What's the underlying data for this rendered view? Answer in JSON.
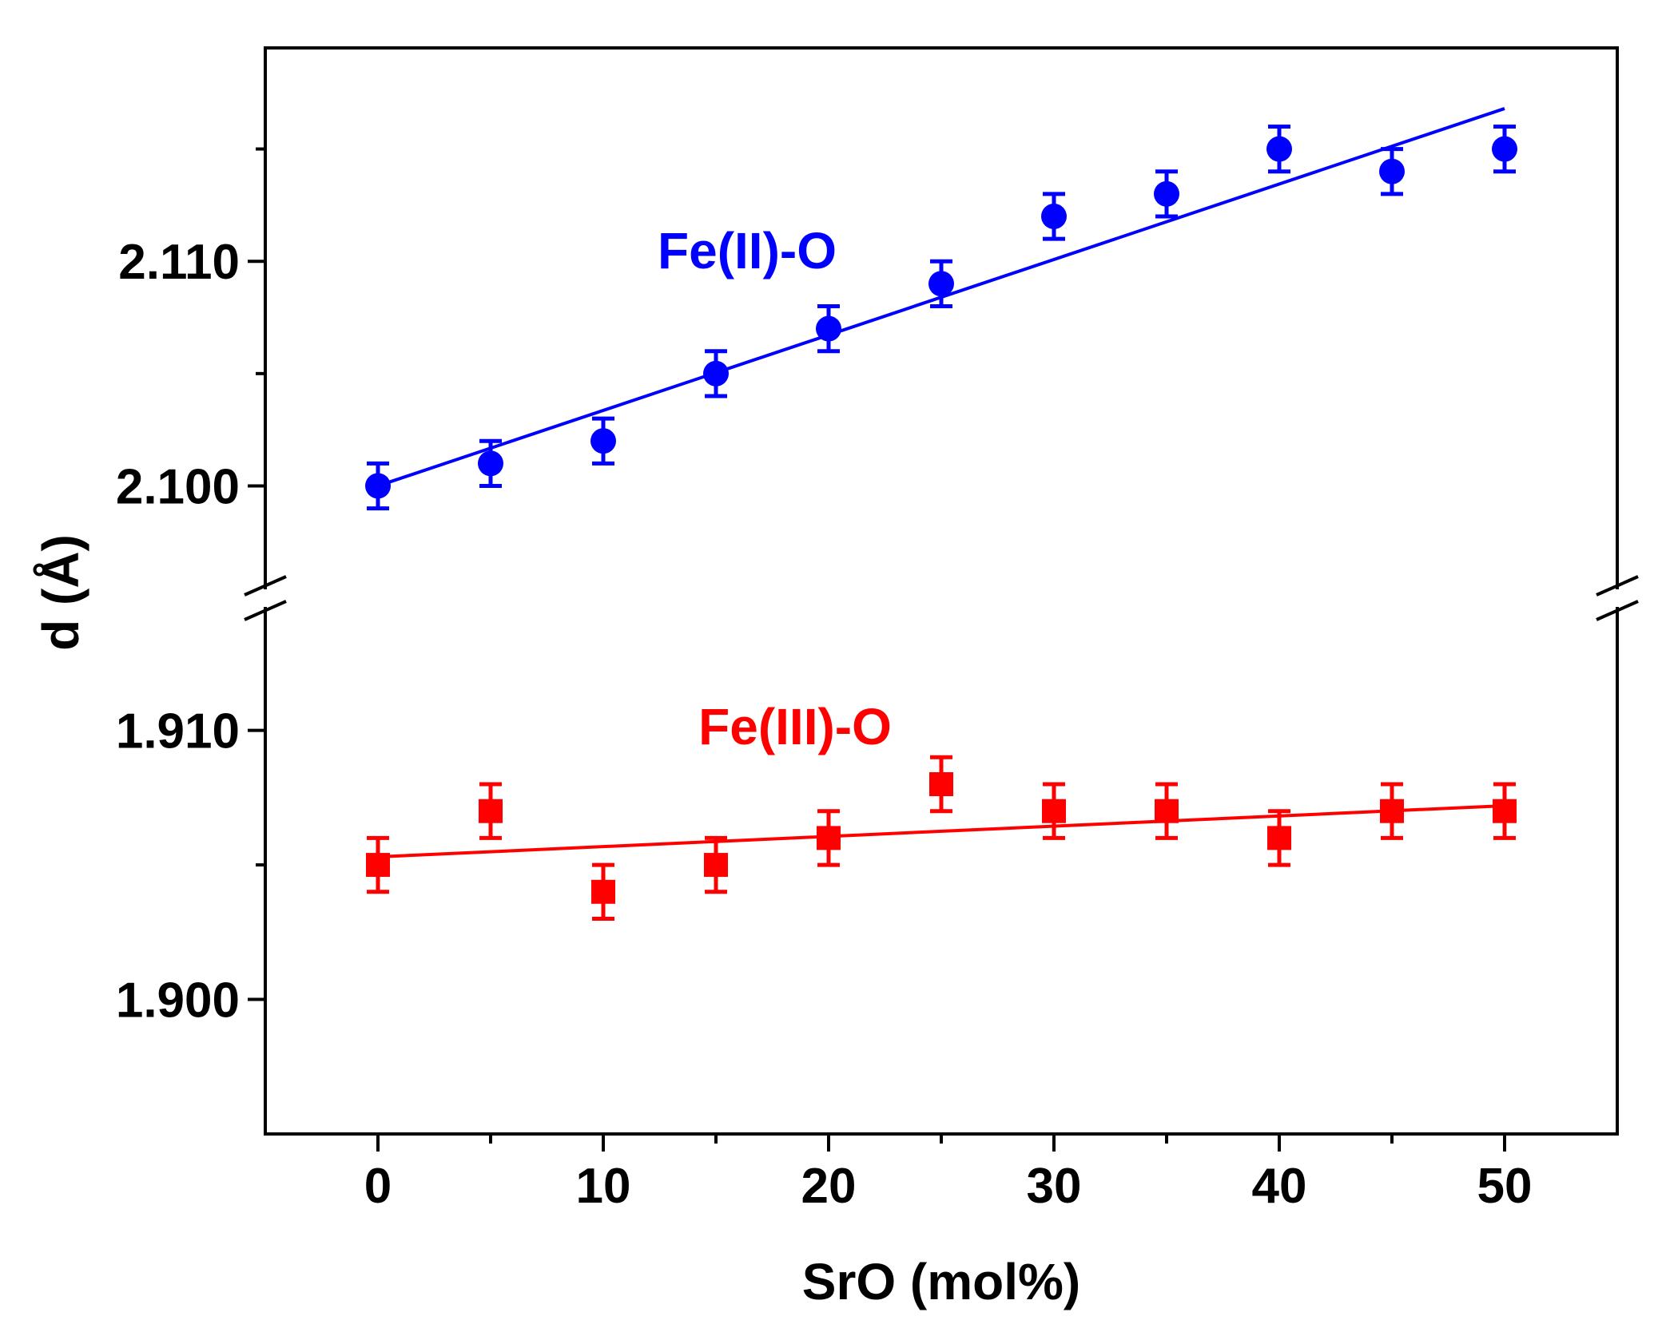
{
  "chart_data": {
    "type": "scatter",
    "title": "",
    "xlabel": "SrO (mol%)",
    "ylabel": "d (Å)",
    "xlim": [
      -5,
      55
    ],
    "x_ticks": [
      0,
      10,
      20,
      30,
      40,
      50
    ],
    "x_tick_labels": [
      "0",
      "10",
      "20",
      "30",
      "40",
      "50"
    ],
    "x_minor_ticks": [
      5,
      15,
      25,
      35,
      45
    ],
    "axis_break": true,
    "upper_panel": {
      "ylim": [
        2.0955,
        2.1195
      ],
      "y_ticks": [
        2.1,
        2.11
      ],
      "y_tick_labels": [
        "2.100",
        "2.110"
      ],
      "y_minor_ticks": [
        2.105,
        2.115
      ]
    },
    "lower_panel": {
      "ylim": [
        1.895,
        1.9145
      ],
      "y_ticks": [
        1.9,
        1.91
      ],
      "y_tick_labels": [
        "1.900",
        "1.910"
      ],
      "y_minor_ticks": [
        1.905
      ]
    },
    "series": [
      {
        "name": "Fe(II)-O",
        "label": "Fe(II)-O",
        "panel": "upper",
        "marker": "circle",
        "color": "#0000FF",
        "x": [
          0,
          5,
          10,
          15,
          20,
          25,
          30,
          35,
          40,
          45,
          50
        ],
        "y": [
          2.1,
          2.101,
          2.102,
          2.105,
          2.107,
          2.109,
          2.112,
          2.113,
          2.115,
          2.114,
          2.115
        ],
        "error": 0.001,
        "fit": {
          "x": [
            0,
            50
          ],
          "y": [
            2.1,
            2.1168
          ]
        }
      },
      {
        "name": "Fe(III)-O",
        "label": "Fe(III)-O",
        "panel": "lower",
        "marker": "square",
        "color": "#FF0000",
        "x": [
          0,
          5,
          10,
          15,
          20,
          25,
          30,
          35,
          40,
          45,
          50
        ],
        "y": [
          1.905,
          1.907,
          1.904,
          1.905,
          1.906,
          1.908,
          1.907,
          1.907,
          1.906,
          1.907,
          1.907
        ],
        "error": 0.001,
        "fit": {
          "x": [
            0,
            50
          ],
          "y": [
            1.9053,
            1.9072
          ]
        }
      }
    ]
  }
}
